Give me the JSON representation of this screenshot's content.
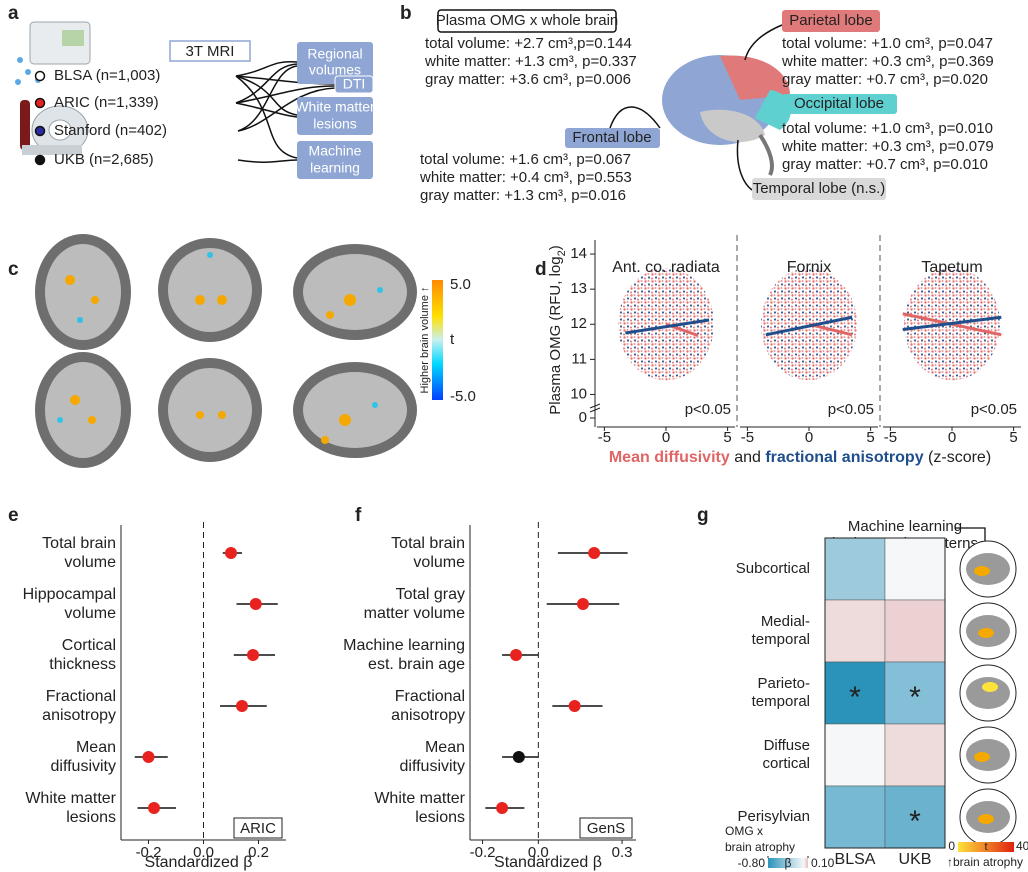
{
  "panel_labels": [
    "a",
    "b",
    "c",
    "d",
    "e",
    "f",
    "g"
  ],
  "panel_a": {
    "mri_label": "3T MRI",
    "cohorts": [
      {
        "name": "BLSA (n=1,003)",
        "color": "#ffffff"
      },
      {
        "name": "ARIC (n=1,339)",
        "color": "#e8231f"
      },
      {
        "name": "Stanford (n=402)",
        "color": "#2c2ca0"
      },
      {
        "name": "UKB (n=2,685)",
        "color": "#111111"
      }
    ],
    "modalities": [
      [
        "Regional",
        "volumes"
      ],
      [
        "DTI"
      ],
      [
        "White matter",
        "lesions"
      ],
      [
        "Machine",
        "learning"
      ]
    ]
  },
  "panel_b": {
    "whole_brain": {
      "title": "Plasma OMG x whole brain",
      "lines": [
        "total volume: +2.7 cm³,p=0.144",
        "white matter: +1.3 cm³, p=0.337",
        "gray matter: +3.6 cm³, p=0.006"
      ]
    },
    "frontal": {
      "title": "Frontal lobe",
      "lines": [
        "total volume: +1.6 cm³, p=0.067",
        "white matter: +0.4 cm³, p=0.553",
        "gray matter: +1.3 cm³, p=0.016"
      ]
    },
    "parietal": {
      "title": "Parietal lobe",
      "lines": [
        "total volume: +1.0 cm³, p=0.047",
        "white matter: +0.3 cm³, p=0.369",
        "gray matter: +0.7 cm³, p=0.020"
      ]
    },
    "occipital": {
      "title": "Occipital lobe",
      "lines": [
        "total volume: +1.0 cm³, p=0.010",
        "white matter: +0.3 cm³, p=0.079",
        "gray matter: +0.7 cm³, p=0.010"
      ]
    },
    "temporal": {
      "title": "Temporal lobe (n.s.)"
    }
  },
  "panel_c": {
    "colorbar_label": "Higher brain volume ↑",
    "colorbar_ticks": [
      "5.0",
      "t",
      "-5.0"
    ]
  },
  "chart_data": [
    {
      "type": "scatter",
      "ylabel_parts": [
        "Plasma OMG (RFU, log",
        "2",
        ")"
      ],
      "ylim": [
        9.7,
        14.4
      ],
      "yticks": [
        0,
        10,
        11,
        12,
        13,
        14
      ],
      "axis_break": true,
      "xlim": [
        -5.6,
        5.6
      ],
      "xticks": [
        -5,
        0,
        5
      ],
      "xlabel_parts": [
        {
          "text": "Mean diffusivity",
          "color": "#e06666",
          "bold": true
        },
        {
          "text": " and ",
          "color": "#222222",
          "bold": false
        },
        {
          "text": "fractional anisotropy",
          "color": "#1f4e8c",
          "bold": true
        },
        {
          "text": " (z-score)",
          "color": "#222222",
          "bold": false
        }
      ],
      "panels": [
        {
          "title": "Ant. co. radiata",
          "annotation": "p<0.05",
          "series": [
            {
              "color": "#e06666",
              "x": [
                0,
                2.6
              ],
              "values": [
                12.0,
                11.68
              ]
            },
            {
              "color": "#1f4e8c",
              "x": [
                -3.3,
                3.5
              ],
              "values": [
                11.75,
                12.12
              ]
            }
          ]
        },
        {
          "title": "Fornix",
          "annotation": "p<0.05",
          "series": [
            {
              "color": "#e06666",
              "x": [
                0,
                3.5
              ],
              "values": [
                12.0,
                11.7
              ]
            },
            {
              "color": "#1f4e8c",
              "x": [
                -3.5,
                3.5
              ],
              "values": [
                11.7,
                12.2
              ]
            }
          ]
        },
        {
          "title": "Tapetum",
          "annotation": "p<0.05",
          "series": [
            {
              "color": "#e06666",
              "x": [
                -4,
                4
              ],
              "values": [
                12.3,
                11.7
              ]
            },
            {
              "color": "#1f4e8c",
              "x": [
                -4,
                4
              ],
              "values": [
                11.85,
                12.2
              ]
            }
          ]
        }
      ]
    },
    {
      "type": "forest",
      "categories": [
        [
          "Total brain",
          "volume"
        ],
        [
          "Hippocampal",
          "volume"
        ],
        [
          "Cortical",
          "thickness"
        ],
        [
          "Fractional",
          "anisotropy"
        ],
        [
          "Mean",
          "diffusivity"
        ],
        [
          "White matter",
          "lesions"
        ]
      ],
      "values": [
        0.1,
        0.19,
        0.18,
        0.14,
        -0.2,
        -0.18
      ],
      "ci_low": [
        0.07,
        0.12,
        0.11,
        0.06,
        -0.25,
        -0.24
      ],
      "ci_high": [
        0.14,
        0.27,
        0.26,
        0.23,
        -0.13,
        -0.1
      ],
      "colors": [
        "#e8231f",
        "#e8231f",
        "#e8231f",
        "#e8231f",
        "#e8231f",
        "#e8231f"
      ],
      "xlim": [
        -0.3,
        0.3
      ],
      "xticks": [
        -0.2,
        {
          "value": 0,
          "label": "0.0"
        },
        0.2
      ],
      "xlabel": "Standardized β",
      "cohort_label": "ARIC"
    },
    {
      "type": "forest",
      "categories": [
        [
          "Total brain",
          "volume"
        ],
        [
          "Total gray",
          "matter volume"
        ],
        [
          "Machine learning",
          "est. brain age"
        ],
        [
          "Fractional",
          "anisotropy"
        ],
        [
          "Mean",
          "diffusivity"
        ],
        [
          "White matter",
          "lesions"
        ]
      ],
      "values": [
        0.2,
        0.16,
        -0.08,
        0.13,
        -0.07,
        -0.13
      ],
      "ci_low": [
        0.07,
        0.03,
        -0.13,
        0.05,
        -0.13,
        -0.19
      ],
      "ci_high": [
        0.32,
        0.29,
        0.0,
        0.23,
        0.0,
        -0.05
      ],
      "colors": [
        "#e8231f",
        "#e8231f",
        "#e8231f",
        "#e8231f",
        "#111111",
        "#e8231f"
      ],
      "xlim": [
        -0.245,
        0.35
      ],
      "xticks": [
        -0.2,
        {
          "value": 0,
          "label": "0.0"
        },
        0.3
      ],
      "xlabel": "Standardized β",
      "cohort_label": "GenS"
    },
    {
      "type": "heatmap",
      "title_lines": [
        "Machine learning",
        "brain atrophy patterns"
      ],
      "rows": [
        [
          "Subcortical"
        ],
        [
          "Medial-",
          "temporal"
        ],
        [
          "Parieto-",
          "temporal"
        ],
        [
          "Diffuse",
          "cortical"
        ],
        [
          "Perisylvian"
        ]
      ],
      "columns": [
        "BLSA",
        "UKB"
      ],
      "values": [
        [
          -0.35,
          0.0
        ],
        [
          0.05,
          0.07
        ],
        [
          -0.8,
          -0.45
        ],
        [
          0.0,
          0.05
        ],
        [
          -0.5,
          -0.55
        ]
      ],
      "significance": [
        [
          false,
          false
        ],
        [
          false,
          false
        ],
        [
          true,
          true
        ],
        [
          false,
          false
        ],
        [
          false,
          true
        ]
      ],
      "significance_label": "*",
      "clim": [
        -0.8,
        0.1
      ],
      "colors": [
        "#2b93ba",
        "#f5f7f9",
        "#e6c0c0"
      ],
      "colorbar": {
        "title_lines": [
          "OMG x",
          "brain atrophy"
        ],
        "ticks": [
          {
            "value": -0.8,
            "label": "-0.80"
          },
          {
            "value": 0.1,
            "label": "0.10"
          }
        ],
        "label": "β"
      },
      "icon_colorbar": {
        "ticks": [
          0,
          40
        ],
        "label": "t",
        "caption": "↑brain atrophy"
      }
    }
  ]
}
